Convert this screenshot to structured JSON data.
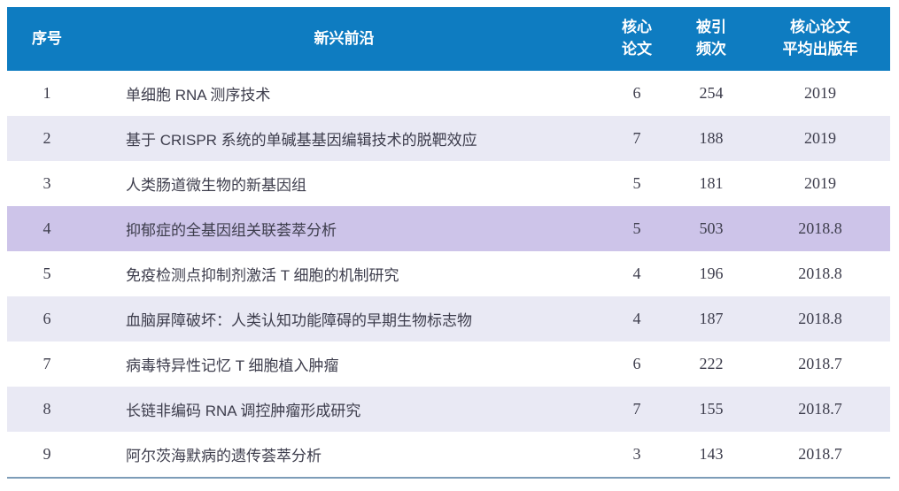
{
  "chart_data": {
    "type": "table",
    "title": "",
    "columns": [
      "序号",
      "新兴前沿",
      "核心论文",
      "被引频次",
      "核心论文平均出版年"
    ],
    "header_lines": [
      "序号",
      "新兴前沿",
      "核心\n论文",
      "被引\n频次",
      "核心论文\n平均出版年"
    ],
    "rows": [
      {
        "index": "1",
        "topic": "单细胞 RNA 测序技术",
        "core_papers": "6",
        "citations": "254",
        "avg_year": "2019",
        "highlight": false
      },
      {
        "index": "2",
        "topic": "基于 CRISPR 系统的单碱基基因编辑技术的脱靶效应",
        "core_papers": "7",
        "citations": "188",
        "avg_year": "2019",
        "highlight": false
      },
      {
        "index": "3",
        "topic": "人类肠道微生物的新基因组",
        "core_papers": "5",
        "citations": "181",
        "avg_year": "2019",
        "highlight": false
      },
      {
        "index": "4",
        "topic": "抑郁症的全基因组关联荟萃分析",
        "core_papers": "5",
        "citations": "503",
        "avg_year": "2018.8",
        "highlight": true
      },
      {
        "index": "5",
        "topic": "免疫检测点抑制剂激活 T 细胞的机制研究",
        "core_papers": "4",
        "citations": "196",
        "avg_year": "2018.8",
        "highlight": false
      },
      {
        "index": "6",
        "topic": "血脑屏障破坏：人类认知功能障碍的早期生物标志物",
        "core_papers": "4",
        "citations": "187",
        "avg_year": "2018.8",
        "highlight": false
      },
      {
        "index": "7",
        "topic": "病毒特异性记忆 T 细胞植入肿瘤",
        "core_papers": "6",
        "citations": "222",
        "avg_year": "2018.7",
        "highlight": false
      },
      {
        "index": "8",
        "topic": "长链非编码 RNA 调控肿瘤形成研究",
        "core_papers": "7",
        "citations": "155",
        "avg_year": "2018.7",
        "highlight": false
      },
      {
        "index": "9",
        "topic": "阿尔茨海默病的遗传荟萃分析",
        "core_papers": "3",
        "citations": "143",
        "avg_year": "2018.7",
        "highlight": false
      }
    ]
  },
  "style": {
    "colors": {
      "header_bg": "#0e7cc1",
      "header_text": "#ffffff",
      "row_stripe_bg": "#e9e9f4",
      "highlight_bg": "#cdc4e9",
      "row_text": "#3d3d4c",
      "bottom_border": "#7d9cb8",
      "page_bg": "#ffffff"
    }
  }
}
